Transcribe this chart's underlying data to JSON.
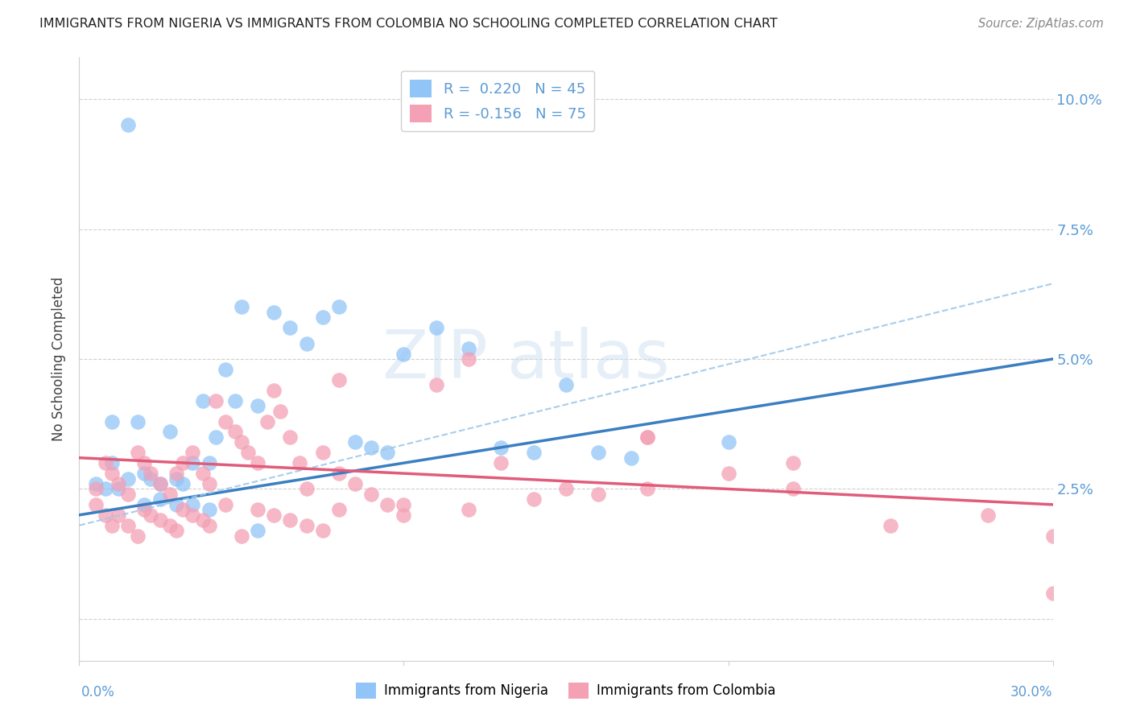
{
  "title": "IMMIGRANTS FROM NIGERIA VS IMMIGRANTS FROM COLOMBIA NO SCHOOLING COMPLETED CORRELATION CHART",
  "source": "Source: ZipAtlas.com",
  "ylabel": "No Schooling Completed",
  "yticks": [
    0.0,
    0.025,
    0.05,
    0.075,
    0.1
  ],
  "ytick_labels": [
    "",
    "2.5%",
    "5.0%",
    "7.5%",
    "10.0%"
  ],
  "xlim": [
    0.0,
    0.3
  ],
  "ylim": [
    -0.008,
    0.108
  ],
  "nigeria_color": "#92c5f7",
  "colombia_color": "#f4a0b5",
  "nigeria_line_color": "#3a7fc1",
  "colombia_line_color": "#e05c7a",
  "nigeria_line_intercept": 0.02,
  "nigeria_line_slope": 0.1,
  "colombia_line_intercept": 0.031,
  "colombia_line_slope": -0.03,
  "nigeria_dash_intercept": 0.018,
  "nigeria_dash_slope": 0.155,
  "nigeria_dash_color": "#a0c8e8",
  "watermark_zip": "ZIP",
  "watermark_atlas": "atlas",
  "nigeria_scatter_x": [
    0.005,
    0.008,
    0.01,
    0.012,
    0.015,
    0.018,
    0.02,
    0.022,
    0.025,
    0.028,
    0.03,
    0.032,
    0.035,
    0.038,
    0.04,
    0.042,
    0.045,
    0.048,
    0.05,
    0.055,
    0.06,
    0.065,
    0.07,
    0.075,
    0.08,
    0.085,
    0.09,
    0.095,
    0.1,
    0.11,
    0.12,
    0.13,
    0.14,
    0.15,
    0.16,
    0.17,
    0.02,
    0.025,
    0.03,
    0.035,
    0.04,
    0.055,
    0.01,
    0.015,
    0.2
  ],
  "nigeria_scatter_y": [
    0.026,
    0.025,
    0.03,
    0.025,
    0.027,
    0.038,
    0.028,
    0.027,
    0.026,
    0.036,
    0.027,
    0.026,
    0.03,
    0.042,
    0.03,
    0.035,
    0.048,
    0.042,
    0.06,
    0.041,
    0.059,
    0.056,
    0.053,
    0.058,
    0.06,
    0.034,
    0.033,
    0.032,
    0.051,
    0.056,
    0.052,
    0.033,
    0.032,
    0.045,
    0.032,
    0.031,
    0.022,
    0.023,
    0.022,
    0.022,
    0.021,
    0.017,
    0.038,
    0.095,
    0.034
  ],
  "colombia_scatter_x": [
    0.005,
    0.008,
    0.01,
    0.012,
    0.015,
    0.018,
    0.02,
    0.022,
    0.025,
    0.028,
    0.03,
    0.032,
    0.035,
    0.038,
    0.04,
    0.042,
    0.045,
    0.048,
    0.05,
    0.052,
    0.055,
    0.058,
    0.06,
    0.062,
    0.065,
    0.068,
    0.07,
    0.075,
    0.08,
    0.085,
    0.09,
    0.095,
    0.1,
    0.11,
    0.13,
    0.15,
    0.005,
    0.008,
    0.01,
    0.012,
    0.015,
    0.018,
    0.02,
    0.022,
    0.025,
    0.028,
    0.03,
    0.032,
    0.035,
    0.038,
    0.04,
    0.045,
    0.05,
    0.055,
    0.06,
    0.065,
    0.07,
    0.075,
    0.08,
    0.1,
    0.12,
    0.14,
    0.16,
    0.175,
    0.2,
    0.22,
    0.25,
    0.28,
    0.3,
    0.175,
    0.22,
    0.3,
    0.175,
    0.12,
    0.08
  ],
  "colombia_scatter_y": [
    0.025,
    0.03,
    0.028,
    0.026,
    0.024,
    0.032,
    0.03,
    0.028,
    0.026,
    0.024,
    0.028,
    0.03,
    0.032,
    0.028,
    0.026,
    0.042,
    0.038,
    0.036,
    0.034,
    0.032,
    0.03,
    0.038,
    0.044,
    0.04,
    0.035,
    0.03,
    0.025,
    0.032,
    0.028,
    0.026,
    0.024,
    0.022,
    0.02,
    0.045,
    0.03,
    0.025,
    0.022,
    0.02,
    0.018,
    0.02,
    0.018,
    0.016,
    0.021,
    0.02,
    0.019,
    0.018,
    0.017,
    0.021,
    0.02,
    0.019,
    0.018,
    0.022,
    0.016,
    0.021,
    0.02,
    0.019,
    0.018,
    0.017,
    0.021,
    0.022,
    0.021,
    0.023,
    0.024,
    0.025,
    0.028,
    0.025,
    0.018,
    0.02,
    0.005,
    0.035,
    0.03,
    0.016,
    0.035,
    0.05,
    0.046
  ]
}
